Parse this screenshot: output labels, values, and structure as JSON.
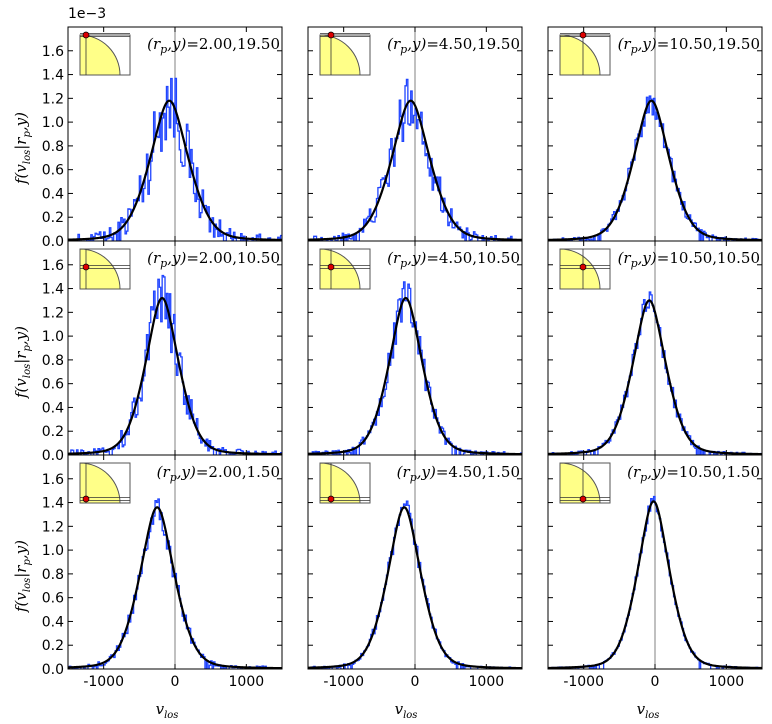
{
  "figure": {
    "offset_label": "1e−3",
    "xlabel_main": "v",
    "xlabel_sub": "los",
    "ylabel_parts": [
      "f(v",
      "los",
      "|r",
      "p",
      ",y)"
    ]
  },
  "chart_data": [
    {
      "type": "line",
      "row": 0,
      "col": 0,
      "rp": 2.0,
      "y": 19.5,
      "annotation_value": "=2.00,19.50",
      "peak": 1.18,
      "center": -80,
      "width": 300,
      "noise": 0.35,
      "ylim": [
        0,
        1.8
      ],
      "xlim": [
        -1500,
        1500
      ]
    },
    {
      "type": "line",
      "row": 0,
      "col": 1,
      "rp": 4.5,
      "y": 19.5,
      "annotation_value": "=4.50,19.50",
      "peak": 1.18,
      "center": -60,
      "width": 300,
      "noise": 0.25,
      "ylim": [
        0,
        1.8
      ],
      "xlim": [
        -1500,
        1500
      ]
    },
    {
      "type": "line",
      "row": 0,
      "col": 2,
      "rp": 10.5,
      "y": 19.5,
      "annotation_value": "=10.50,19.50",
      "peak": 1.18,
      "center": -50,
      "width": 280,
      "noise": 0.12,
      "ylim": [
        0,
        1.8
      ],
      "xlim": [
        -1500,
        1500
      ]
    },
    {
      "type": "line",
      "row": 1,
      "col": 0,
      "rp": 2.0,
      "y": 10.5,
      "annotation_value": "=2.00,10.50",
      "peak": 1.32,
      "center": -180,
      "width": 260,
      "noise": 0.25,
      "ylim": [
        0,
        1.8
      ],
      "xlim": [
        -1500,
        1500
      ]
    },
    {
      "type": "line",
      "row": 1,
      "col": 1,
      "rp": 4.5,
      "y": 10.5,
      "annotation_value": "=4.50,10.50",
      "peak": 1.32,
      "center": -130,
      "width": 260,
      "noise": 0.15,
      "ylim": [
        0,
        1.8
      ],
      "xlim": [
        -1500,
        1500
      ]
    },
    {
      "type": "line",
      "row": 1,
      "col": 2,
      "rp": 10.5,
      "y": 10.5,
      "annotation_value": "=10.50,10.50",
      "peak": 1.3,
      "center": -80,
      "width": 260,
      "noise": 0.1,
      "ylim": [
        0,
        1.8
      ],
      "xlim": [
        -1500,
        1500
      ]
    },
    {
      "type": "line",
      "row": 2,
      "col": 0,
      "rp": 2.0,
      "y": 1.5,
      "annotation_value": "=2.00,1.50",
      "peak": 1.36,
      "center": -250,
      "width": 270,
      "noise": 0.12,
      "ylim": [
        0,
        1.8
      ],
      "xlim": [
        -1500,
        1500
      ]
    },
    {
      "type": "line",
      "row": 2,
      "col": 1,
      "rp": 4.5,
      "y": 1.5,
      "annotation_value": "=4.50,1.50",
      "peak": 1.36,
      "center": -150,
      "width": 260,
      "noise": 0.08,
      "ylim": [
        0,
        1.8
      ],
      "xlim": [
        -1500,
        1500
      ]
    },
    {
      "type": "line",
      "row": 2,
      "col": 2,
      "rp": 10.5,
      "y": 1.5,
      "annotation_value": "=10.50,1.50",
      "peak": 1.41,
      "center": -20,
      "width": 250,
      "noise": 0.05,
      "ylim": [
        0,
        1.8
      ],
      "xlim": [
        -1500,
        1500
      ]
    }
  ],
  "axes": {
    "yticks": [
      "0.0",
      "0.2",
      "0.4",
      "0.6",
      "0.8",
      "1.0",
      "1.2",
      "1.4",
      "1.6"
    ],
    "xticks": [
      "-1000",
      "0",
      "1000"
    ],
    "xtick_values": [
      -1000,
      0,
      1000
    ],
    "ytick_values": [
      0,
      0.2,
      0.4,
      0.6,
      0.8,
      1.0,
      1.2,
      1.4,
      1.6
    ]
  },
  "colors": {
    "histogram": "#1f44ff",
    "model": "#000000",
    "zero_line": "#808080",
    "inset_fill": "#ffff88",
    "marker": "#dd0000"
  }
}
